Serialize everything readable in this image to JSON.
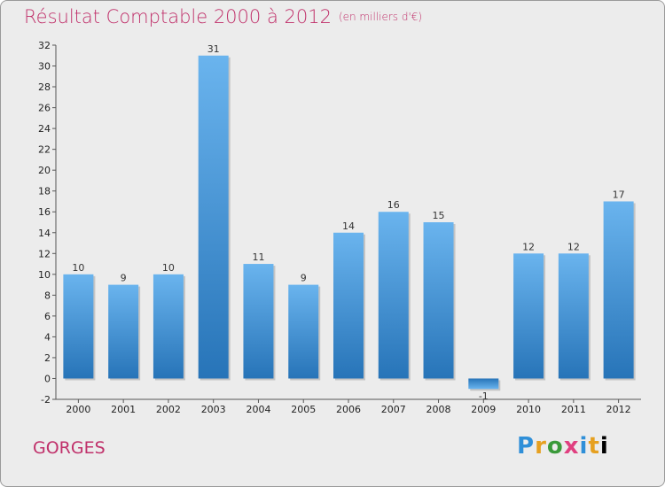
{
  "chart_data": {
    "type": "bar",
    "title": "Résultat Comptable 2000 à 2012",
    "subtitle": "(en milliers d'€)",
    "categories": [
      "2000",
      "2001",
      "2002",
      "2003",
      "2004",
      "2005",
      "2006",
      "2007",
      "2008",
      "2009",
      "2010",
      "2011",
      "2012"
    ],
    "values": [
      10,
      9,
      10,
      31,
      11,
      9,
      14,
      16,
      15,
      -1,
      12,
      12,
      17
    ],
    "ylim": [
      -2,
      32
    ],
    "yticks": [
      -2,
      0,
      2,
      4,
      6,
      8,
      10,
      12,
      14,
      16,
      18,
      20,
      22,
      24,
      26,
      28,
      30,
      32
    ],
    "grid": false,
    "xlabel": "",
    "ylabel": ""
  },
  "footer": {
    "commune": "GORGES",
    "brand_letters": [
      "P",
      "r",
      "o",
      "x",
      "i",
      "t",
      "i"
    ]
  },
  "colors": {
    "bar_light": "#6ab4ee",
    "bar_dark": "#2774b8",
    "title": "#c0306a"
  }
}
